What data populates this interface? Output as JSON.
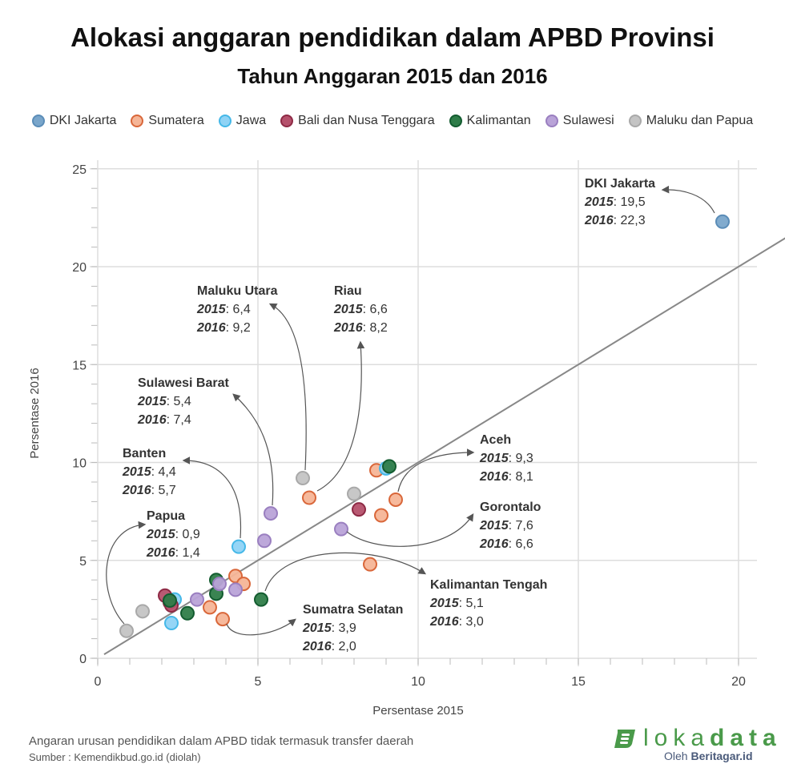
{
  "chart_data": {
    "type": "scatter",
    "title": "Alokasi anggaran pendidikan dalam APBD Provinsi",
    "subtitle": "Tahun Anggaran 2015 dan 2016",
    "xlabel": "Persentase 2015",
    "ylabel": "Persentase 2016",
    "xlim": [
      0,
      20.5
    ],
    "ylim": [
      0,
      25
    ],
    "xticks": [
      "0",
      "5",
      "10",
      "15",
      "20"
    ],
    "yticks": [
      "0",
      "5",
      "10",
      "15",
      "20",
      "25"
    ],
    "grid": true,
    "legend_position": "top",
    "reference_line": "y = x",
    "series": [
      {
        "name": "DKI Jakarta",
        "color": "#5b8db8",
        "fill": "#7aa6cb",
        "points": [
          [
            19.5,
            22.3
          ]
        ]
      },
      {
        "name": "Sumatera",
        "color": "#d9673a",
        "fill": "#f5b597",
        "points": [
          [
            6.6,
            8.2
          ],
          [
            8.7,
            9.6
          ],
          [
            9.3,
            8.1
          ],
          [
            8.85,
            7.3
          ],
          [
            8.5,
            4.8
          ],
          [
            4.3,
            4.2
          ],
          [
            4.55,
            3.8
          ],
          [
            3.5,
            2.6
          ],
          [
            3.9,
            2.0
          ]
        ]
      },
      {
        "name": "Jawa",
        "color": "#45b8e8",
        "fill": "#8fd3f5",
        "points": [
          [
            4.4,
            5.7
          ],
          [
            2.3,
            1.8
          ],
          [
            2.4,
            3.0
          ],
          [
            9.0,
            9.7
          ]
        ]
      },
      {
        "name": "Bali dan Nusa Tenggara",
        "color": "#8e2a45",
        "fill": "#b5516c",
        "points": [
          [
            8.15,
            7.6
          ],
          [
            2.1,
            3.2
          ],
          [
            2.25,
            2.85
          ],
          [
            2.3,
            2.7
          ]
        ]
      },
      {
        "name": "Kalimantan",
        "color": "#135c30",
        "fill": "#2f7d49",
        "points": [
          [
            9.1,
            9.8
          ],
          [
            5.1,
            3.0
          ],
          [
            3.7,
            4.0
          ],
          [
            3.7,
            3.3
          ],
          [
            2.8,
            2.3
          ],
          [
            2.25,
            2.95
          ]
        ]
      },
      {
        "name": "Sulawesi",
        "color": "#9a7fc0",
        "fill": "#b9a3d8",
        "points": [
          [
            5.4,
            7.4
          ],
          [
            7.6,
            6.6
          ],
          [
            5.2,
            6.0
          ],
          [
            3.8,
            3.8
          ],
          [
            4.3,
            3.5
          ],
          [
            3.1,
            3.0
          ]
        ]
      },
      {
        "name": "Maluku dan Papua",
        "color": "#a9a9a9",
        "fill": "#c4c4c4",
        "points": [
          [
            6.4,
            9.2
          ],
          [
            8.0,
            8.4
          ],
          [
            0.9,
            1.4
          ],
          [
            1.4,
            2.4
          ]
        ]
      }
    ],
    "annotations": [
      {
        "name": "DKI Jakarta",
        "y2015": "19,5",
        "y2016": "22,3"
      },
      {
        "name": "Maluku Utara",
        "y2015": "6,4",
        "y2016": "9,2"
      },
      {
        "name": "Riau",
        "y2015": "6,6",
        "y2016": "8,2"
      },
      {
        "name": "Sulawesi Barat",
        "y2015": "5,4",
        "y2016": "7,4"
      },
      {
        "name": "Banten",
        "y2015": "4,4",
        "y2016": "5,7"
      },
      {
        "name": "Papua",
        "y2015": "0,9",
        "y2016": "1,4"
      },
      {
        "name": "Aceh",
        "y2015": "9,3",
        "y2016": "8,1"
      },
      {
        "name": "Gorontalo",
        "y2015": "7,6",
        "y2016": "6,6"
      },
      {
        "name": "Kalimantan Tengah",
        "y2015": "5,1",
        "y2016": "3,0"
      },
      {
        "name": "Sumatra Selatan",
        "y2015": "3,9",
        "y2016": "2,0"
      }
    ],
    "year_labels": [
      "2015",
      "2016"
    ]
  },
  "footer": {
    "note": "Angaran urusan pendidikan dalam APBD tidak termasuk transfer daerah",
    "source": "Sumber : Kemendikbud.go.id (diolah)"
  },
  "logo": {
    "light": "loka",
    "bold": "data",
    "by": "Oleh",
    "brand": "Beritagar.id"
  }
}
